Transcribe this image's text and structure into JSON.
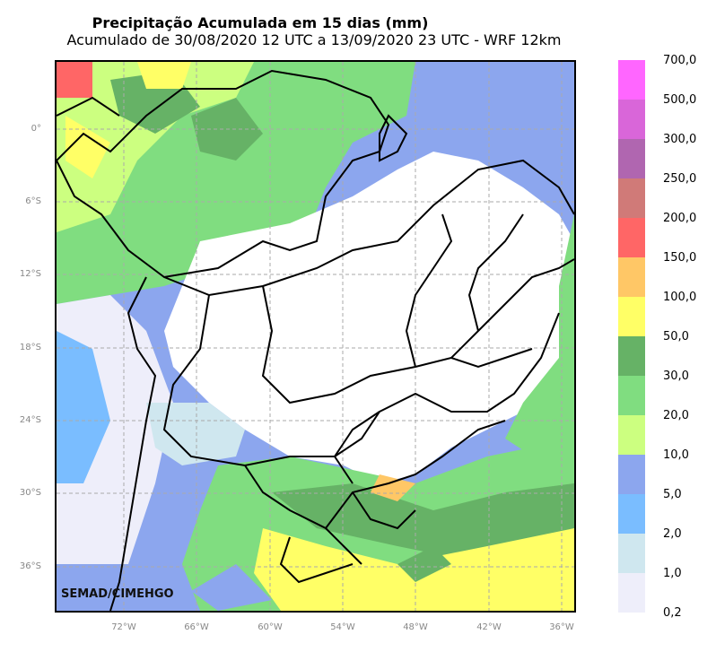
{
  "title": "Precipitação Acumulada em 15 dias (mm)",
  "subtitle": "Acumulado de 30/08/2020 12 UTC a 13/09/2020 23 UTC - WRF 12km",
  "credit": "SEMAD/CIMEHGO",
  "lat_labels": [
    "0°",
    "6°S",
    "12°S",
    "18°S",
    "24°S",
    "30°S",
    "36°S"
  ],
  "lon_labels": [
    "72°W",
    "66°W",
    "60°W",
    "54°W",
    "48°W",
    "42°W",
    "36°W"
  ],
  "colorbar": {
    "labels": [
      "700,0",
      "500,0",
      "300,0",
      "250,0",
      "200,0",
      "150,0",
      "100,0",
      "50,0",
      "30,0",
      "20,0",
      "10,0",
      "5,0",
      "2,0",
      "1,0",
      "0,2"
    ],
    "colors": [
      "#ff66ff",
      "#d966d9",
      "#b066b0",
      "#d07a78",
      "#ff6666",
      "#ffc766",
      "#ffff66",
      "#66b266",
      "#80dd80",
      "#ccff80",
      "#8ca6ee",
      "#7abdff",
      "#cfe7ef",
      "#eeeefa"
    ]
  },
  "colors": {
    "border": "#000000",
    "grid": "#aaaaaa"
  }
}
